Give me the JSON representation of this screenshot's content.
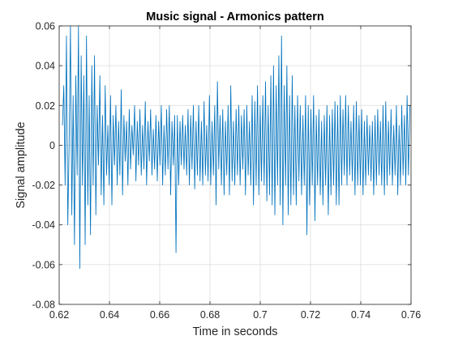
{
  "chart_data": {
    "type": "line",
    "title": "Music signal - Armonics pattern",
    "xlabel": "Time in seconds",
    "ylabel": "Signal amplitude",
    "xlim": [
      0.62,
      0.76
    ],
    "ylim": [
      -0.08,
      0.06
    ],
    "x_ticks": [
      0.62,
      0.64,
      0.66,
      0.68,
      0.7,
      0.72,
      0.74,
      0.76
    ],
    "x_tick_labels": [
      "0.62",
      "0.64",
      "0.66",
      "0.68",
      "0.7",
      "0.72",
      "0.74",
      "0.76"
    ],
    "y_ticks": [
      -0.08,
      -0.06,
      -0.04,
      -0.02,
      0,
      0.02,
      0.04,
      0.06
    ],
    "y_tick_labels": [
      "-0.08",
      "-0.06",
      "-0.04",
      "-0.02",
      "0",
      "0.02",
      "0.04",
      "0.06"
    ],
    "grid": true,
    "series": [
      {
        "color": "#0072BD",
        "x_start": 0.6213,
        "x_end": 0.7595,
        "values": [
          0.01,
          0.03,
          -0.02,
          0.055,
          -0.04,
          0.0,
          0.06,
          -0.035,
          0.025,
          -0.05,
          0.035,
          -0.015,
          0.06,
          -0.062,
          0.045,
          -0.02,
          0.035,
          -0.05,
          0.055,
          -0.03,
          0.025,
          -0.045,
          0.04,
          -0.02,
          0.045,
          -0.035,
          0.02,
          -0.01,
          0.035,
          -0.025,
          0.015,
          -0.03,
          0.03,
          -0.015,
          0.01,
          -0.02,
          0.025,
          -0.03,
          0.015,
          -0.01,
          0.02,
          -0.02,
          0.012,
          -0.015,
          0.028,
          -0.025,
          0.015,
          -0.008,
          0.012,
          -0.02,
          0.018,
          -0.012,
          0.01,
          -0.005,
          0.02,
          -0.018,
          0.012,
          -0.01,
          0.018,
          -0.015,
          0.01,
          -0.012,
          0.022,
          -0.02,
          0.012,
          -0.008,
          0.018,
          -0.015,
          0.008,
          -0.012,
          0.015,
          -0.018,
          0.012,
          -0.01,
          0.02,
          -0.02,
          0.01,
          -0.015,
          0.018,
          -0.012,
          0.02,
          -0.025,
          0.012,
          -0.01,
          0.015,
          -0.054,
          0.015,
          -0.02,
          0.012,
          -0.01,
          0.015,
          -0.012,
          0.01,
          -0.015,
          0.018,
          -0.02,
          0.015,
          -0.012,
          0.02,
          -0.022,
          0.012,
          -0.015,
          0.02,
          -0.018,
          0.012,
          -0.02,
          0.022,
          -0.015,
          0.01,
          -0.018,
          0.025,
          -0.02,
          0.012,
          -0.015,
          0.02,
          -0.03,
          0.032,
          -0.012,
          0.015,
          -0.02,
          0.018,
          -0.025,
          0.012,
          -0.015,
          0.02,
          -0.025,
          0.03,
          -0.018,
          0.012,
          -0.02,
          0.018,
          -0.015,
          0.02,
          -0.02,
          0.015,
          -0.012,
          0.018,
          -0.025,
          0.02,
          -0.015,
          0.012,
          -0.02,
          0.025,
          -0.03,
          0.022,
          -0.02,
          0.03,
          -0.025,
          0.02,
          -0.018,
          0.025,
          -0.02,
          0.032,
          -0.028,
          0.02,
          -0.025,
          0.035,
          -0.03,
          0.04,
          -0.035,
          0.03,
          -0.02,
          0.045,
          -0.03,
          0.055,
          -0.04,
          0.03,
          -0.02,
          0.04,
          -0.035,
          0.025,
          -0.03,
          0.035,
          -0.025,
          0.02,
          -0.03,
          0.025,
          -0.018,
          0.02,
          -0.025,
          0.015,
          -0.02,
          0.025,
          -0.045,
          0.02,
          -0.03,
          0.018,
          -0.02,
          0.025,
          -0.038,
          0.015,
          -0.02,
          0.018,
          -0.025,
          0.012,
          -0.03,
          0.015,
          -0.02,
          0.02,
          -0.035,
          0.015,
          -0.025,
          0.018,
          -0.02,
          0.022,
          -0.03,
          0.02,
          -0.03,
          0.025,
          -0.02,
          0.018,
          -0.015,
          0.025,
          -0.02,
          0.02,
          -0.015,
          0.012,
          -0.018,
          0.02,
          -0.025,
          0.022,
          -0.02,
          0.015,
          -0.02,
          0.018,
          -0.025,
          0.012,
          -0.02,
          0.015,
          -0.015,
          0.01,
          -0.018,
          0.012,
          -0.025,
          0.015,
          -0.02,
          0.018,
          -0.015,
          0.012,
          -0.02,
          0.02,
          -0.025,
          0.022,
          -0.02,
          0.012,
          -0.015,
          0.018,
          -0.02,
          0.01,
          -0.015,
          0.02,
          -0.025,
          0.01,
          -0.02,
          0.02,
          -0.015,
          0.015,
          -0.02,
          0.025,
          -0.015,
          0.02
        ]
      }
    ]
  }
}
